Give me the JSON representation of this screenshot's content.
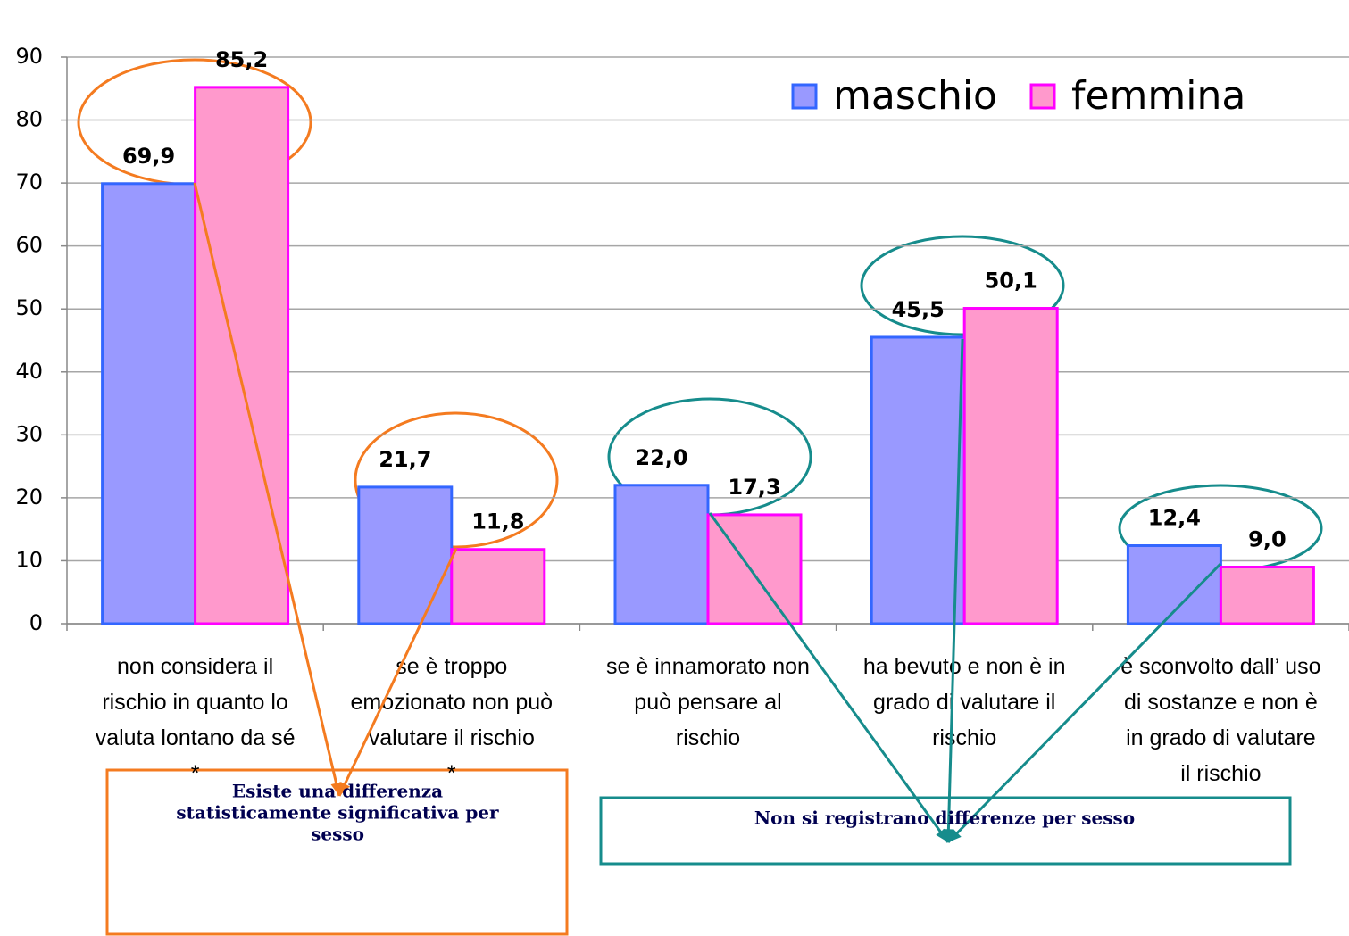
{
  "chart_data": {
    "type": "bar",
    "categories": [
      [
        "non considera il",
        "rischio in quanto lo",
        "valuta lontano da sé",
        "*"
      ],
      [
        "se è troppo",
        "emozionato non può",
        "valutare il rischio",
        "*"
      ],
      [
        "se è innamorato non",
        "può pensare al",
        "rischio"
      ],
      [
        "ha bevuto e non è in",
        "grado di valutare il",
        "rischio"
      ],
      [
        "è sconvolto dall’ uso",
        "di sostanze e non è",
        "in grado di valutare",
        "il rischio"
      ]
    ],
    "series": [
      {
        "name": "maschio",
        "color": "#9999ff",
        "stroke": "#3366ff",
        "values": [
          69.9,
          21.7,
          22.0,
          45.5,
          12.4
        ],
        "value_labels": [
          "69,9",
          "21,7",
          "22,0",
          "45,5",
          "12,4"
        ]
      },
      {
        "name": "femmina",
        "color": "#ff99cc",
        "stroke": "#ff00ff",
        "values": [
          85.2,
          11.8,
          17.3,
          50.1,
          9.0
        ],
        "value_labels": [
          "85,2",
          "11,8",
          "17,3",
          "50,1",
          "9,0"
        ]
      }
    ],
    "ylim": [
      0,
      90
    ],
    "yticks": [
      0,
      10,
      20,
      30,
      40,
      50,
      60,
      70,
      80,
      90
    ],
    "grid": true,
    "legend": "top-right",
    "annotations": [
      [
        "Esiste una differenza",
        "statisticamente significativa per",
        "sesso"
      ],
      [
        "Non si registrano differenze per sesso"
      ]
    ]
  }
}
